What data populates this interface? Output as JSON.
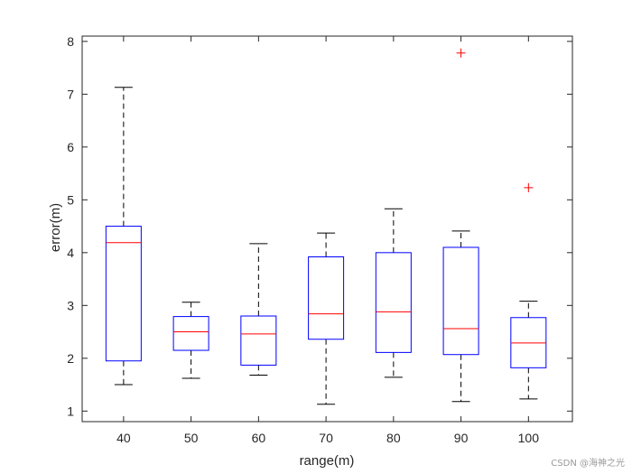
{
  "chart_data": {
    "type": "box",
    "xlabel": "range(m)",
    "ylabel": "error(m)",
    "ylim": [
      0.8,
      8.1
    ],
    "yticks": [
      1,
      2,
      3,
      4,
      5,
      6,
      7,
      8
    ],
    "categories": [
      "40",
      "50",
      "60",
      "70",
      "80",
      "90",
      "100"
    ],
    "boxes": [
      {
        "category": "40",
        "whisker_low": 1.5,
        "q1": 1.95,
        "median": 4.19,
        "q3": 4.5,
        "whisker_high": 7.13,
        "outliers": []
      },
      {
        "category": "50",
        "whisker_low": 1.62,
        "q1": 2.15,
        "median": 2.5,
        "q3": 2.79,
        "whisker_high": 3.06,
        "outliers": []
      },
      {
        "category": "60",
        "whisker_low": 1.68,
        "q1": 1.87,
        "median": 2.46,
        "q3": 2.8,
        "whisker_high": 4.17,
        "outliers": []
      },
      {
        "category": "70",
        "whisker_low": 1.13,
        "q1": 2.36,
        "median": 2.84,
        "q3": 3.92,
        "whisker_high": 4.37,
        "outliers": []
      },
      {
        "category": "80",
        "whisker_low": 1.64,
        "q1": 2.11,
        "median": 2.88,
        "q3": 4.0,
        "whisker_high": 4.83,
        "outliers": []
      },
      {
        "category": "90",
        "whisker_low": 1.18,
        "q1": 2.07,
        "median": 2.56,
        "q3": 4.1,
        "whisker_high": 4.41,
        "outliers": [
          7.78
        ]
      },
      {
        "category": "100",
        "whisker_low": 1.23,
        "q1": 1.82,
        "median": 2.29,
        "q3": 2.77,
        "whisker_high": 3.08,
        "outliers": [
          5.23
        ]
      }
    ],
    "colors": {
      "box": "#0000ff",
      "median": "#ff0000",
      "whisker": "#000000",
      "outlier": "#ff0000",
      "axis": "#262626"
    },
    "grid": false,
    "legend": "none"
  },
  "watermark": "CSDN @海神之光"
}
